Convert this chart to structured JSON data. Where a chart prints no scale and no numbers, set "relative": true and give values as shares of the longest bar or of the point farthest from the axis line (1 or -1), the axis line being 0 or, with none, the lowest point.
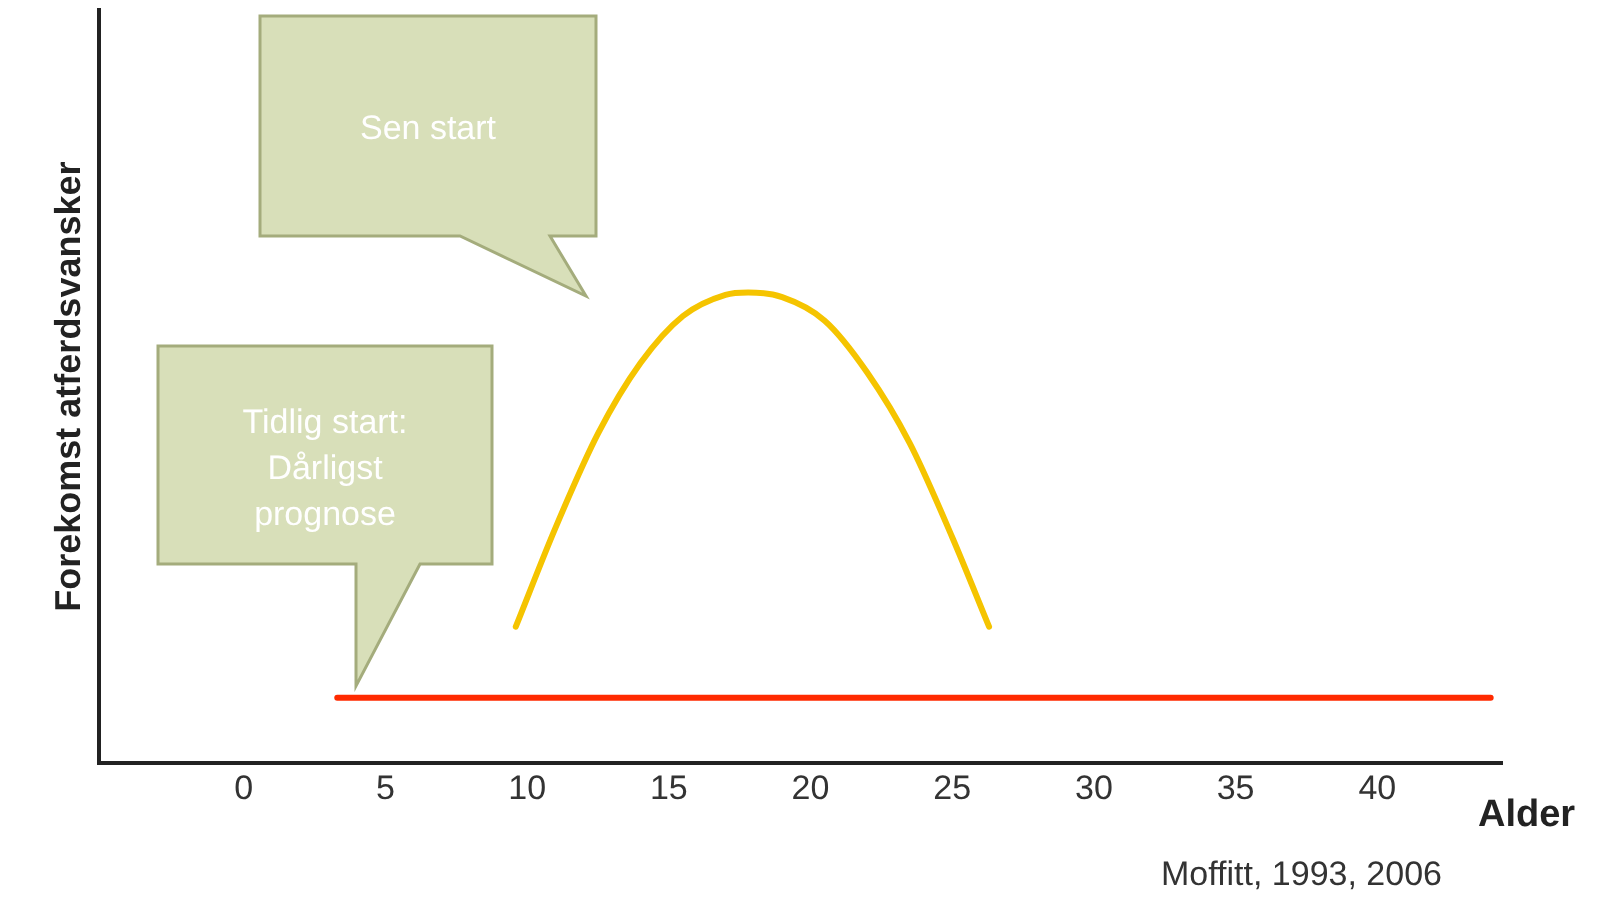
{
  "chart_data": {
    "type": "line",
    "relative": true,
    "ylabel": "Forekomst atferdsvansker",
    "xlabel": "Alder",
    "xlim": [
      -5.1,
      44.4
    ],
    "xticks": [
      0,
      5,
      10,
      15,
      20,
      25,
      30,
      35,
      40
    ],
    "grid": false,
    "legend": false,
    "marker": "none",
    "line_style": "solid",
    "series": [
      {
        "color": "#ff2a00",
        "x": [
          3.3,
          44
        ],
        "values": [
          0.139,
          0.139
        ]
      },
      {
        "color": "#f5c400",
        "x": [
          9.6,
          11,
          12.5,
          14,
          15.5,
          17,
          17.8,
          19,
          20.5,
          22,
          23.5,
          25,
          26.3
        ],
        "values": [
          0.29,
          0.5,
          0.7,
          0.85,
          0.95,
          0.995,
          1,
          0.99,
          0.94,
          0.83,
          0.68,
          0.48,
          0.29
        ]
      }
    ],
    "annotations": [
      "Sen start",
      "Tidlig start: Dårligst prognose",
      "Moffitt, 1993, 2006"
    ]
  }
}
